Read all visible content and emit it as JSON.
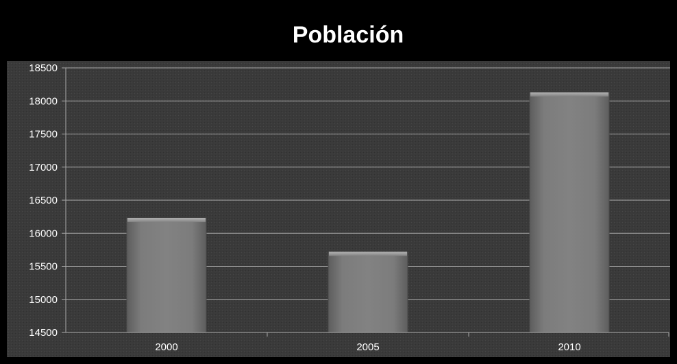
{
  "chart_data": {
    "type": "bar",
    "title": "Población",
    "xlabel": "",
    "ylabel": "",
    "categories": [
      "2000",
      "2005",
      "2010"
    ],
    "values": [
      16230,
      15720,
      18130
    ],
    "ylim": [
      14500,
      18500
    ],
    "yticks": [
      "14500",
      "15000",
      "15500",
      "16000",
      "16500",
      "17000",
      "17500",
      "18000",
      "18500"
    ],
    "grid": true,
    "legend": "none",
    "colors": {
      "background": "#000000",
      "plot_area": "#3b3b3b",
      "bar": "#7a7a7a",
      "gridline": "#a9a9a9",
      "text": "#ffffff"
    }
  }
}
